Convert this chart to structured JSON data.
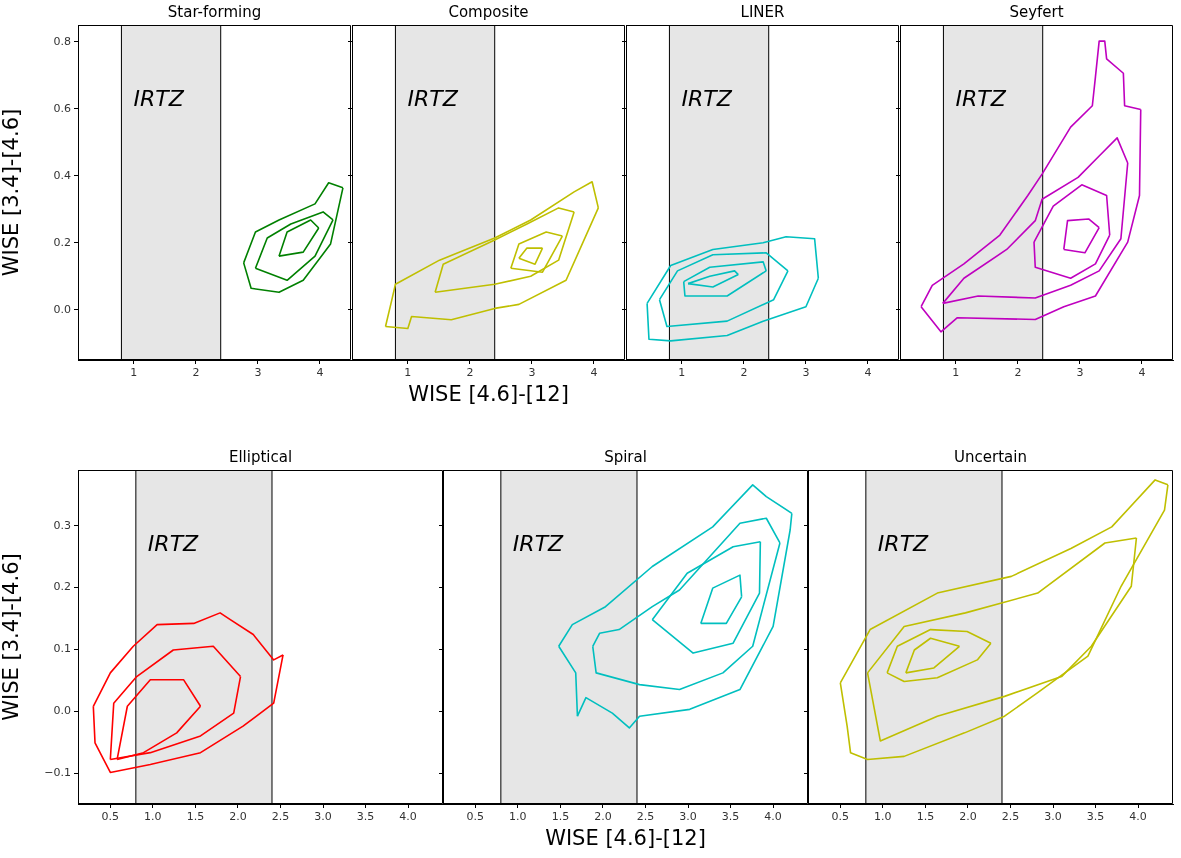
{
  "chart_data": [
    {
      "type": "line",
      "title": "Star-forming",
      "ylabel": "WISE [3.4]-[4.6]",
      "xlim": [
        0.1,
        4.5
      ],
      "ylim": [
        -0.15,
        0.85
      ],
      "xticks": [
        1,
        2,
        3,
        4
      ],
      "yticks": [
        {
          "value": 0,
          "label": "0.0"
        },
        {
          "value": 0.2,
          "label": "0.2"
        },
        {
          "value": 0.4,
          "label": "0.4"
        },
        {
          "value": 0.6,
          "label": "0.6"
        },
        {
          "value": 0.8,
          "label": "0.8"
        }
      ],
      "grid": false,
      "legend": false,
      "marker": "none",
      "bands": [
        {
          "axis": "x",
          "from": 0.8,
          "to": 2.4,
          "label": "IRTZ",
          "color": "#e6e6e6"
        }
      ],
      "ref_lines": [
        {
          "axis": "x",
          "value": 0.8,
          "color": "#000000"
        },
        {
          "axis": "x",
          "value": 2.4,
          "color": "#000000"
        }
      ],
      "series": [
        {
          "color": "#008000",
          "x": [
            2.77,
            2.89,
            3.34,
            3.73,
            4.17,
            4.37
          ],
          "values": [
            0.14,
            0.064,
            0.052,
            0.088,
            0.196,
            0.364
          ]
        },
        {
          "color": "#008000",
          "x": [
            2.77,
            2.96,
            3.34,
            3.92,
            4.14,
            4.37
          ],
          "values": [
            0.14,
            0.232,
            0.268,
            0.316,
            0.379,
            0.364
          ]
        },
        {
          "color": "#008000",
          "x": [
            2.96,
            3.47,
            3.92,
            4.21
          ],
          "values": [
            0.124,
            0.088,
            0.16,
            0.268
          ]
        },
        {
          "color": "#008000",
          "x": [
            2.96,
            3.15,
            3.53,
            4.05,
            4.21
          ],
          "values": [
            0.124,
            0.214,
            0.256,
            0.292,
            0.268
          ]
        },
        {
          "color": "#008000",
          "x": [
            3.34,
            3.73,
            3.98
          ],
          "values": [
            0.16,
            0.172,
            0.244
          ]
        },
        {
          "color": "#008000",
          "x": [
            3.34,
            3.47,
            3.85,
            3.98
          ],
          "values": [
            0.16,
            0.232,
            0.268,
            0.244
          ]
        }
      ]
    },
    {
      "type": "line",
      "title": "Composite",
      "xlabel": "WISE [4.6]-[12]",
      "tick_labels": "x",
      "xlim": [
        0.1,
        4.5
      ],
      "ylim": [
        -0.15,
        0.85
      ],
      "xticks": [
        1,
        2,
        3,
        4
      ],
      "yticks": [
        0,
        0.2,
        0.4,
        0.6,
        0.8
      ],
      "grid": false,
      "legend": false,
      "marker": "none",
      "bands": [
        {
          "axis": "x",
          "from": 0.8,
          "to": 2.4,
          "label": "IRTZ",
          "color": "#e6e6e6"
        }
      ],
      "ref_lines": [
        {
          "axis": "x",
          "value": 0.8,
          "color": "#000000"
        },
        {
          "axis": "x",
          "value": 2.4,
          "color": "#000000"
        }
      ],
      "series": [
        {
          "color": "#bfbf00",
          "x": [
            0.64,
            1.0,
            1.06,
            1.7,
            2.4,
            2.79,
            3.55,
            4.07
          ],
          "values": [
            -0.05,
            -0.056,
            -0.02,
            -0.03,
            0.004,
            0.016,
            0.088,
            0.304
          ]
        },
        {
          "color": "#bfbf00",
          "x": [
            0.64,
            0.74,
            0.8,
            1.51,
            2.4,
            2.98,
            3.68,
            3.97,
            4.07
          ],
          "values": [
            -0.05,
            0.028,
            0.076,
            0.148,
            0.214,
            0.268,
            0.352,
            0.382,
            0.304
          ]
        },
        {
          "color": "#bfbf00",
          "x": [
            1.44,
            2.4,
            2.98,
            3.43,
            3.68
          ],
          "values": [
            0.052,
            0.076,
            0.1,
            0.148,
            0.292
          ]
        },
        {
          "color": "#bfbf00",
          "x": [
            1.44,
            1.57,
            2.4,
            2.92,
            3.43,
            3.68
          ],
          "values": [
            0.052,
            0.136,
            0.208,
            0.256,
            0.304,
            0.292
          ]
        },
        {
          "color": "#bfbf00",
          "x": [
            2.66,
            3.17,
            3.49
          ],
          "values": [
            0.124,
            0.112,
            0.22
          ]
        },
        {
          "color": "#bfbf00",
          "x": [
            2.66,
            2.79,
            3.23,
            3.49
          ],
          "values": [
            0.124,
            0.196,
            0.232,
            0.22
          ]
        },
        {
          "color": "#bfbf00",
          "x": [
            2.79,
            3.05,
            3.17
          ],
          "values": [
            0.154,
            0.136,
            0.184
          ]
        },
        {
          "color": "#bfbf00",
          "x": [
            2.79,
            2.92,
            3.17
          ],
          "values": [
            0.154,
            0.184,
            0.184
          ]
        }
      ]
    },
    {
      "type": "line",
      "title": "LINER",
      "tick_labels": "x",
      "xlim": [
        0.1,
        4.5
      ],
      "ylim": [
        -0.15,
        0.85
      ],
      "xticks": [
        1,
        2,
        3,
        4
      ],
      "yticks": [
        0,
        0.2,
        0.4,
        0.6,
        0.8
      ],
      "grid": false,
      "legend": false,
      "marker": "none",
      "bands": [
        {
          "axis": "x",
          "from": 0.8,
          "to": 2.4,
          "label": "IRTZ",
          "color": "#e6e6e6"
        }
      ],
      "ref_lines": [
        {
          "axis": "x",
          "value": 0.8,
          "color": "#000000"
        },
        {
          "axis": "x",
          "value": 2.4,
          "color": "#000000"
        }
      ],
      "series": [
        {
          "color": "#00bfbf",
          "x": [
            0.44,
            0.47,
            0.82,
            1.73,
            2.31,
            3.0,
            3.2
          ],
          "values": [
            0.019,
            -0.088,
            -0.093,
            -0.077,
            -0.034,
            0.009,
            0.094
          ]
        },
        {
          "color": "#00bfbf",
          "x": [
            0.44,
            0.82,
            1.5,
            2.31,
            2.68,
            3.14,
            3.2
          ],
          "values": [
            0.019,
            0.132,
            0.18,
            0.2,
            0.218,
            0.212,
            0.094
          ]
        },
        {
          "color": "#00bfbf",
          "x": [
            0.64,
            0.76,
            1.73,
            2.48,
            2.71
          ],
          "values": [
            0.03,
            -0.05,
            -0.034,
            0.03,
            0.116
          ]
        },
        {
          "color": "#00bfbf",
          "x": [
            0.64,
            0.93,
            1.5,
            2.36,
            2.71
          ],
          "values": [
            0.03,
            0.116,
            0.164,
            0.17,
            0.116
          ]
        },
        {
          "color": "#00bfbf",
          "x": [
            1.03,
            1.05,
            1.73,
            2.36
          ],
          "values": [
            0.084,
            0.041,
            0.041,
            0.116
          ]
        },
        {
          "color": "#00bfbf",
          "x": [
            1.03,
            1.45,
            2.31,
            2.36
          ],
          "values": [
            0.084,
            0.127,
            0.143,
            0.116
          ]
        },
        {
          "color": "#00bfbf",
          "x": [
            1.1,
            1.5,
            1.91
          ],
          "values": [
            0.078,
            0.068,
            0.105
          ]
        },
        {
          "color": "#00bfbf",
          "x": [
            1.1,
            1.45,
            1.85,
            1.91
          ],
          "values": [
            0.078,
            0.1,
            0.116,
            0.105
          ]
        }
      ]
    },
    {
      "type": "line",
      "title": "Seyfert",
      "tick_labels": "x",
      "xlim": [
        0.1,
        4.5
      ],
      "ylim": [
        -0.15,
        0.85
      ],
      "xticks": [
        1,
        2,
        3,
        4
      ],
      "yticks": [
        0,
        0.2,
        0.4,
        0.6,
        0.8
      ],
      "grid": false,
      "legend": false,
      "marker": "none",
      "bands": [
        {
          "axis": "x",
          "from": 0.8,
          "to": 2.4,
          "label": "IRTZ",
          "color": "#e6e6e6"
        }
      ],
      "ref_lines": [
        {
          "axis": "x",
          "value": 0.8,
          "color": "#000000"
        },
        {
          "axis": "x",
          "value": 2.4,
          "color": "#000000"
        }
      ],
      "series": [
        {
          "color": "#bf00bf",
          "x": [
            0.44,
            0.76,
            1.02,
            2.28,
            2.74,
            3.25,
            3.77,
            3.96,
            3.98
          ],
          "values": [
            0.009,
            -0.066,
            -0.024,
            -0.029,
            0.009,
            0.041,
            0.202,
            0.341,
            0.598
          ]
        },
        {
          "color": "#bf00bf",
          "x": [
            0.44,
            0.62,
            1.13,
            1.71,
            2.16,
            2.39,
            2.85,
            3.2,
            3.25,
            3.31,
            3.4,
            3.43,
            3.7,
            3.72,
            3.98
          ],
          "values": [
            0.009,
            0.073,
            0.137,
            0.223,
            0.341,
            0.405,
            0.545,
            0.609,
            0.695,
            0.802,
            0.802,
            0.749,
            0.706,
            0.609,
            0.598
          ]
        },
        {
          "color": "#bf00bf",
          "x": [
            0.79,
            1.36,
            2.28,
            2.85,
            3.31,
            3.66,
            3.77
          ],
          "values": [
            0.019,
            0.041,
            0.035,
            0.073,
            0.116,
            0.212,
            0.438
          ]
        },
        {
          "color": "#bf00bf",
          "x": [
            0.79,
            1.13,
            1.82,
            2.28,
            2.39,
            2.97,
            3.31,
            3.6,
            3.77
          ],
          "values": [
            0.019,
            0.094,
            0.18,
            0.266,
            0.33,
            0.395,
            0.459,
            0.513,
            0.438
          ]
        },
        {
          "color": "#bf00bf",
          "x": [
            2.26,
            2.28,
            2.85,
            3.25,
            3.48
          ],
          "values": [
            0.202,
            0.127,
            0.094,
            0.137,
            0.223
          ]
        },
        {
          "color": "#bf00bf",
          "x": [
            2.26,
            2.57,
            3.03,
            3.43,
            3.48
          ],
          "values": [
            0.202,
            0.309,
            0.373,
            0.341,
            0.223
          ]
        },
        {
          "color": "#bf00bf",
          "x": [
            2.74,
            3.08,
            3.31
          ],
          "values": [
            0.18,
            0.17,
            0.245
          ]
        },
        {
          "color": "#bf00bf",
          "x": [
            2.74,
            2.8,
            3.14,
            3.31
          ],
          "values": [
            0.18,
            0.266,
            0.271,
            0.245
          ]
        }
      ]
    },
    {
      "type": "line",
      "title": "Elliptical",
      "ylabel": "WISE [3.4]-[4.6]",
      "xlim": [
        0.12,
        4.41
      ],
      "ylim": [
        -0.15,
        0.39
      ],
      "xticks": [
        0.5,
        {
          "value": 1,
          "label": "1.0"
        },
        1.5,
        {
          "value": 2,
          "label": "2.0"
        },
        2.5,
        {
          "value": 3,
          "label": "3.0"
        },
        3.5,
        {
          "value": 4,
          "label": "4.0"
        }
      ],
      "yticks": [
        {
          "value": -0.1,
          "label": "−0.1"
        },
        {
          "value": 0,
          "label": "0.0"
        },
        {
          "value": 0.1,
          "label": "0.1"
        },
        {
          "value": 0.2,
          "label": "0.2"
        },
        {
          "value": 0.3,
          "label": "0.3"
        }
      ],
      "grid": false,
      "legend": false,
      "marker": "none",
      "bands": [
        {
          "axis": "x",
          "from": 0.8,
          "to": 2.4,
          "label": "IRTZ",
          "color": "#e6e6e6"
        }
      ],
      "ref_lines": [
        {
          "axis": "x",
          "value": 0.8,
          "color": "#000000"
        },
        {
          "axis": "x",
          "value": 2.4,
          "color": "#000000"
        }
      ],
      "series": [
        {
          "color": "#ff0000",
          "x": [
            0.3,
            0.5,
            0.77,
            1.05,
            1.48,
            1.79,
            1.91,
            2.18,
            2.42,
            2.53
          ],
          "values": [
            0.008,
            0.062,
            0.105,
            0.14,
            0.142,
            0.159,
            0.148,
            0.124,
            0.083,
            0.091
          ]
        },
        {
          "color": "#ff0000",
          "x": [
            0.3,
            0.32,
            0.5,
            0.97,
            1.56,
            2.06,
            2.42,
            2.53
          ],
          "values": [
            0.008,
            -0.051,
            -0.099,
            -0.086,
            -0.067,
            -0.024,
            0.013,
            0.091
          ]
        },
        {
          "color": "#ff0000",
          "x": [
            0.5,
            0.97,
            1.56,
            1.95,
            2.03
          ],
          "values": [
            -0.078,
            -0.067,
            -0.04,
            -0.003,
            0.056
          ]
        },
        {
          "color": "#ff0000",
          "x": [
            0.5,
            0.54,
            0.81,
            1.24,
            1.71,
            2.03
          ],
          "values": [
            -0.078,
            0.013,
            0.056,
            0.099,
            0.105,
            0.056
          ]
        },
        {
          "color": "#ff0000",
          "x": [
            0.58,
            0.89,
            1.28,
            1.56
          ],
          "values": [
            -0.078,
            -0.067,
            -0.035,
            0.008
          ]
        },
        {
          "color": "#ff0000",
          "x": [
            0.58,
            0.7,
            0.97,
            1.36,
            1.56
          ],
          "values": [
            -0.078,
            0.008,
            0.051,
            0.051,
            0.008
          ]
        }
      ]
    },
    {
      "type": "line",
      "title": "Spiral",
      "xlabel": "WISE [4.6]-[12]",
      "tick_labels": "x",
      "xlim": [
        0.12,
        4.41
      ],
      "ylim": [
        -0.15,
        0.39
      ],
      "xticks": [
        0.5,
        {
          "value": 1,
          "label": "1.0"
        },
        1.5,
        {
          "value": 2,
          "label": "2.0"
        },
        2.5,
        {
          "value": 3,
          "label": "3.0"
        },
        3.5,
        {
          "value": 4,
          "label": "4.0"
        }
      ],
      "yticks": [
        -0.1,
        0,
        0.1,
        0.2,
        0.3
      ],
      "grid": false,
      "legend": false,
      "marker": "none",
      "bands": [
        {
          "axis": "x",
          "from": 0.8,
          "to": 2.4,
          "label": "IRTZ",
          "color": "#e6e6e6"
        }
      ],
      "ref_lines": [
        {
          "axis": "x",
          "value": 0.8,
          "color": "#000000"
        },
        {
          "axis": "x",
          "value": 2.4,
          "color": "#000000"
        }
      ],
      "series": [
        {
          "color": "#00bfbf",
          "x": [
            1.48,
            1.68,
            1.7
          ],
          "values": [
            0.105,
            0.062,
            -0.008
          ]
        },
        {
          "color": "#00bfbf",
          "x": [
            1.48,
            1.64,
            2.03,
            2.58,
            3.29,
            3.76,
            3.92,
            4.22
          ],
          "values": [
            0.105,
            0.14,
            0.169,
            0.234,
            0.298,
            0.366,
            0.347,
            0.32
          ]
        },
        {
          "color": "#00bfbf",
          "x": [
            1.7,
            1.8,
            2.11,
            2.31,
            2.43,
            3.02,
            3.61,
            4.0,
            4.2,
            4.22
          ],
          "values": [
            -0.008,
            0.022,
            -0.003,
            -0.027,
            -0.008,
            0.003,
            0.035,
            0.137,
            0.293,
            0.32
          ]
        },
        {
          "color": "#00bfbf",
          "x": [
            1.88,
            1.92,
            2.43,
            2.9,
            3.41,
            3.76,
            4.08
          ],
          "values": [
            0.105,
            0.062,
            0.043,
            0.035,
            0.062,
            0.105,
            0.272
          ]
        },
        {
          "color": "#00bfbf",
          "x": [
            1.88,
            1.96,
            2.19,
            2.58,
            2.9,
            3.61,
            3.92,
            4.08
          ],
          "values": [
            0.105,
            0.126,
            0.132,
            0.169,
            0.196,
            0.304,
            0.312,
            0.272
          ]
        },
        {
          "color": "#00bfbf",
          "x": [
            2.58,
            3.06,
            3.53,
            3.84,
            3.85
          ],
          "values": [
            0.148,
            0.094,
            0.11,
            0.191,
            0.274
          ]
        },
        {
          "color": "#00bfbf",
          "x": [
            2.58,
            2.99,
            3.53,
            3.85
          ],
          "values": [
            0.148,
            0.223,
            0.266,
            0.274
          ]
        },
        {
          "color": "#00bfbf",
          "x": [
            3.15,
            3.45,
            3.63
          ],
          "values": [
            0.142,
            0.142,
            0.185
          ]
        },
        {
          "color": "#00bfbf",
          "x": [
            3.15,
            3.29,
            3.61,
            3.63
          ],
          "values": [
            0.142,
            0.199,
            0.22,
            0.185
          ]
        }
      ]
    },
    {
      "type": "line",
      "title": "Uncertain",
      "tick_labels": "x",
      "xlim": [
        0.12,
        4.41
      ],
      "ylim": [
        -0.15,
        0.39
      ],
      "xticks": [
        0.5,
        {
          "value": 1,
          "label": "1.0"
        },
        1.5,
        {
          "value": 2,
          "label": "2.0"
        },
        2.5,
        {
          "value": 3,
          "label": "3.0"
        },
        3.5,
        {
          "value": 4,
          "label": "4.0"
        }
      ],
      "yticks": [
        -0.1,
        0,
        0.1,
        0.2,
        0.3
      ],
      "grid": false,
      "legend": false,
      "marker": "none",
      "bands": [
        {
          "axis": "x",
          "from": 0.8,
          "to": 2.4,
          "label": "IRTZ",
          "color": "#e6e6e6"
        }
      ],
      "ref_lines": [
        {
          "axis": "x",
          "value": 0.8,
          "color": "#000000"
        },
        {
          "axis": "x",
          "value": 2.4,
          "color": "#000000"
        }
      ],
      "series": [
        {
          "color": "#bfbf00",
          "x": [
            0.5,
            0.58,
            0.62,
            0.82,
            1.25,
            1.96,
            2.43,
            2.82,
            3.41,
            3.8,
            4.31,
            4.35
          ],
          "values": [
            0.046,
            -0.024,
            -0.067,
            -0.078,
            -0.073,
            -0.035,
            -0.008,
            0.03,
            0.089,
            0.202,
            0.325,
            0.366
          ]
        },
        {
          "color": "#bfbf00",
          "x": [
            0.5,
            0.85,
            1.64,
            2.51,
            3.21,
            3.69,
            4.2,
            4.35
          ],
          "values": [
            0.046,
            0.132,
            0.191,
            0.218,
            0.263,
            0.298,
            0.374,
            0.366
          ]
        },
        {
          "color": "#bfbf00",
          "x": [
            0.82,
            0.97,
            1.64,
            2.43,
            3.1,
            3.45,
            3.92,
            3.98
          ],
          "values": [
            0.062,
            -0.048,
            -0.008,
            0.024,
            0.056,
            0.105,
            0.202,
            0.28
          ]
        },
        {
          "color": "#bfbf00",
          "x": [
            0.82,
            1.25,
            1.97,
            2.82,
            3.61,
            3.98
          ],
          "values": [
            0.062,
            0.137,
            0.159,
            0.191,
            0.272,
            0.28
          ]
        },
        {
          "color": "#bfbf00",
          "x": [
            1.05,
            1.25,
            1.64,
            2.11,
            2.27
          ],
          "values": [
            0.062,
            0.048,
            0.054,
            0.083,
            0.11
          ]
        },
        {
          "color": "#bfbf00",
          "x": [
            1.05,
            1.17,
            1.56,
            1.99,
            2.27
          ],
          "values": [
            0.062,
            0.105,
            0.132,
            0.129,
            0.11
          ]
        },
        {
          "color": "#bfbf00",
          "x": [
            1.27,
            1.6,
            1.9
          ],
          "values": [
            0.062,
            0.07,
            0.105
          ]
        },
        {
          "color": "#bfbf00",
          "x": [
            1.27,
            1.37,
            1.56,
            1.9
          ],
          "values": [
            0.062,
            0.099,
            0.118,
            0.105
          ]
        }
      ]
    }
  ]
}
